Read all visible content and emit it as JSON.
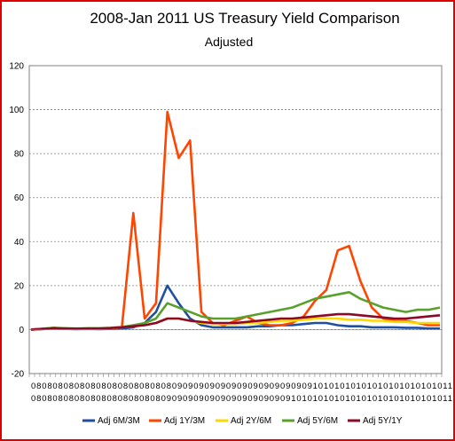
{
  "chart_data": {
    "type": "line",
    "title": "2008-Jan 2011 US Treasury Yield Comparison",
    "subtitle": "Adjusted",
    "xlabel": "",
    "ylabel": "",
    "ylim": [
      -20,
      120
    ],
    "yticks": [
      "120",
      "100",
      "80",
      "60",
      "40",
      "20",
      "0",
      "-20"
    ],
    "xtick_row1": "080808080808080808080808080909090909090909090909090910101010101010101010101011",
    "xtick_row2": "080808080808080808080808090909090909090909090909101010101010101010101010101011",
    "legend_position": "bottom",
    "grid": true,
    "x_points": 37,
    "series": [
      {
        "name": "Adj 6M/3M",
        "color": "#1f4f9f",
        "values": [
          0,
          0.2,
          0.5,
          0.3,
          0.2,
          0.3,
          0.2,
          0.3,
          0.5,
          1,
          3,
          8,
          20,
          12,
          5,
          2,
          1,
          1,
          1,
          1,
          1.5,
          1.5,
          2,
          2,
          2.5,
          3,
          3,
          2,
          1.5,
          1.5,
          1,
          1,
          1,
          0.8,
          0.8,
          0.5,
          0.5
        ]
      },
      {
        "name": "Adj 1Y/3M",
        "color": "#ff4500",
        "values": [
          0,
          0.3,
          0.8,
          0.4,
          0.3,
          0.4,
          0.3,
          0.5,
          1,
          53,
          5,
          12,
          99,
          78,
          86,
          8,
          3,
          2,
          4,
          6,
          3,
          2,
          2,
          3,
          6,
          13,
          18,
          36,
          38,
          22,
          10,
          5,
          4,
          4,
          3,
          2,
          2
        ]
      },
      {
        "name": "Adj 2Y/6M",
        "color": "#ffd700",
        "values": [
          0,
          0.3,
          0.5,
          0.4,
          0.3,
          0.4,
          0.4,
          0.6,
          1,
          1.5,
          2,
          3,
          5,
          5,
          4,
          3,
          2.5,
          2.5,
          2.5,
          3,
          3,
          3.5,
          4,
          4,
          4.5,
          5,
          5,
          5,
          4.5,
          4.5,
          4,
          4,
          3.5,
          3.5,
          3,
          3,
          3
        ]
      },
      {
        "name": "Adj 5Y/6M",
        "color": "#5aa02c",
        "values": [
          0,
          0.4,
          0.8,
          0.6,
          0.5,
          0.6,
          0.6,
          0.8,
          1.2,
          2,
          3,
          5,
          12,
          10,
          8,
          6,
          5,
          5,
          5,
          6,
          7,
          8,
          9,
          10,
          12,
          14,
          15,
          16,
          17,
          14,
          12,
          10,
          9,
          8,
          9,
          9,
          10
        ]
      },
      {
        "name": "Adj 5Y/1Y",
        "color": "#8b0a2a",
        "values": [
          0,
          0.3,
          0.6,
          0.5,
          0.4,
          0.5,
          0.5,
          0.7,
          1,
          1.5,
          2,
          3,
          5,
          5,
          4,
          3.5,
          3,
          3,
          3,
          3.5,
          4,
          4.5,
          5,
          5,
          5.5,
          6,
          6.5,
          7,
          7,
          6.5,
          6,
          5.5,
          5,
          5,
          5.5,
          6,
          6.5
        ]
      }
    ]
  }
}
